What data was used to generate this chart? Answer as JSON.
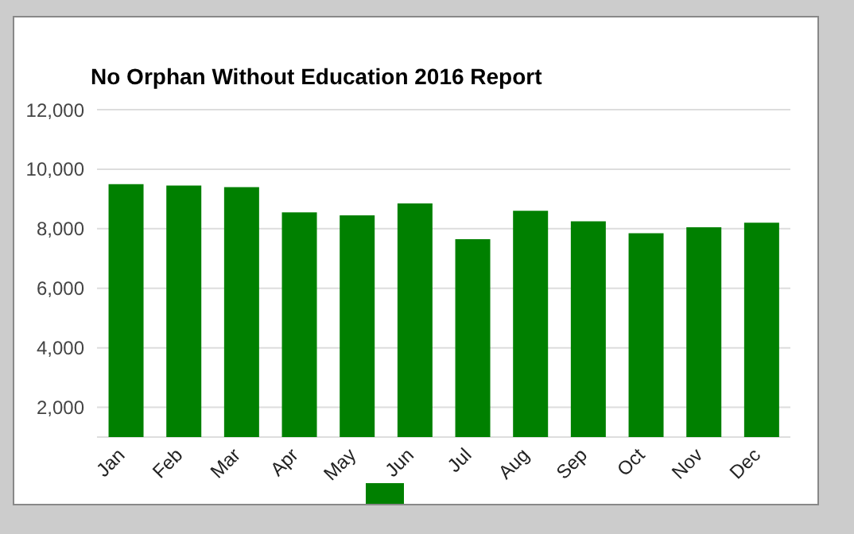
{
  "chart_data": {
    "type": "bar",
    "title": "No Orphan Without Education 2016 Report",
    "categories": [
      "Jan",
      "Feb",
      "Mar",
      "Apr",
      "May",
      "Jun",
      "Jul",
      "Aug",
      "Sep",
      "Oct",
      "Nov",
      "Dec"
    ],
    "series": [
      {
        "color": "#008000",
        "values": [
          9500,
          9450,
          9400,
          8550,
          8450,
          8850,
          7650,
          8600,
          8250,
          7850,
          8050,
          8200
        ]
      }
    ],
    "ylim": [
      1000,
      12000
    ],
    "yticks": [
      {
        "value": 2000,
        "label": "2,000"
      },
      {
        "value": 4000,
        "label": "4,000"
      },
      {
        "value": 6000,
        "label": "6,000"
      },
      {
        "value": 8000,
        "label": "8,000"
      },
      {
        "value": 10000,
        "label": "10,000"
      },
      {
        "value": 12000,
        "label": "12,000"
      }
    ],
    "grid": "y"
  }
}
